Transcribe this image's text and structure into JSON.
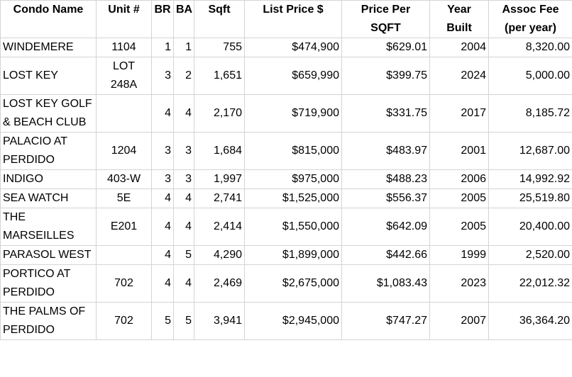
{
  "table": {
    "headers": [
      "Condo Name",
      "Unit #",
      "BR",
      "BA",
      "Sqft",
      "List Price $",
      [
        "Price Per",
        "SQFT"
      ],
      [
        "Year",
        "Built"
      ],
      [
        "Assoc Fee",
        "(per year)"
      ]
    ],
    "rows": [
      [
        "WINDEMERE",
        "1104",
        "1",
        "1",
        "755",
        "$474,900",
        "$629.01",
        "2004",
        "8,320.00"
      ],
      [
        "LOST KEY",
        [
          "LOT",
          "248A"
        ],
        "3",
        "2",
        "1,651",
        "$659,990",
        "$399.75",
        "2024",
        "5,000.00"
      ],
      [
        [
          "LOST KEY GOLF",
          "& BEACH CLUB"
        ],
        null,
        "4",
        "4",
        "2,170",
        "$719,900",
        "$331.75",
        "2017",
        "8,185.72"
      ],
      [
        [
          "PALACIO AT",
          "PERDIDO"
        ],
        "1204",
        "3",
        "3",
        "1,684",
        "$815,000",
        "$483.97",
        "2001",
        "12,687.00"
      ],
      [
        "INDIGO",
        "403-W",
        "3",
        "3",
        "1,997",
        "$975,000",
        "$488.23",
        "2006",
        "14,992.92"
      ],
      [
        "SEA WATCH",
        "5E",
        "4",
        "4",
        "2,741",
        "$1,525,000",
        "$556.37",
        "2005",
        "25,519.80"
      ],
      [
        [
          "THE",
          "MARSEILLES"
        ],
        "E201",
        "4",
        "4",
        "2,414",
        "$1,550,000",
        "$642.09",
        "2005",
        "20,400.00"
      ],
      [
        "PARASOL WEST",
        null,
        "4",
        "5",
        "4,290",
        "$1,899,000",
        "$442.66",
        "1999",
        "2,520.00"
      ],
      [
        [
          "PORTICO AT",
          "PERDIDO"
        ],
        "702",
        "4",
        "4",
        "2,469",
        "$2,675,000",
        "$1,083.43",
        "2023",
        "22,012.32"
      ],
      [
        [
          "THE PALMS OF",
          "PERDIDO"
        ],
        "702",
        "5",
        "5",
        "3,941",
        "$2,945,000",
        "$747.27",
        "2007",
        "36,364.20"
      ]
    ]
  }
}
